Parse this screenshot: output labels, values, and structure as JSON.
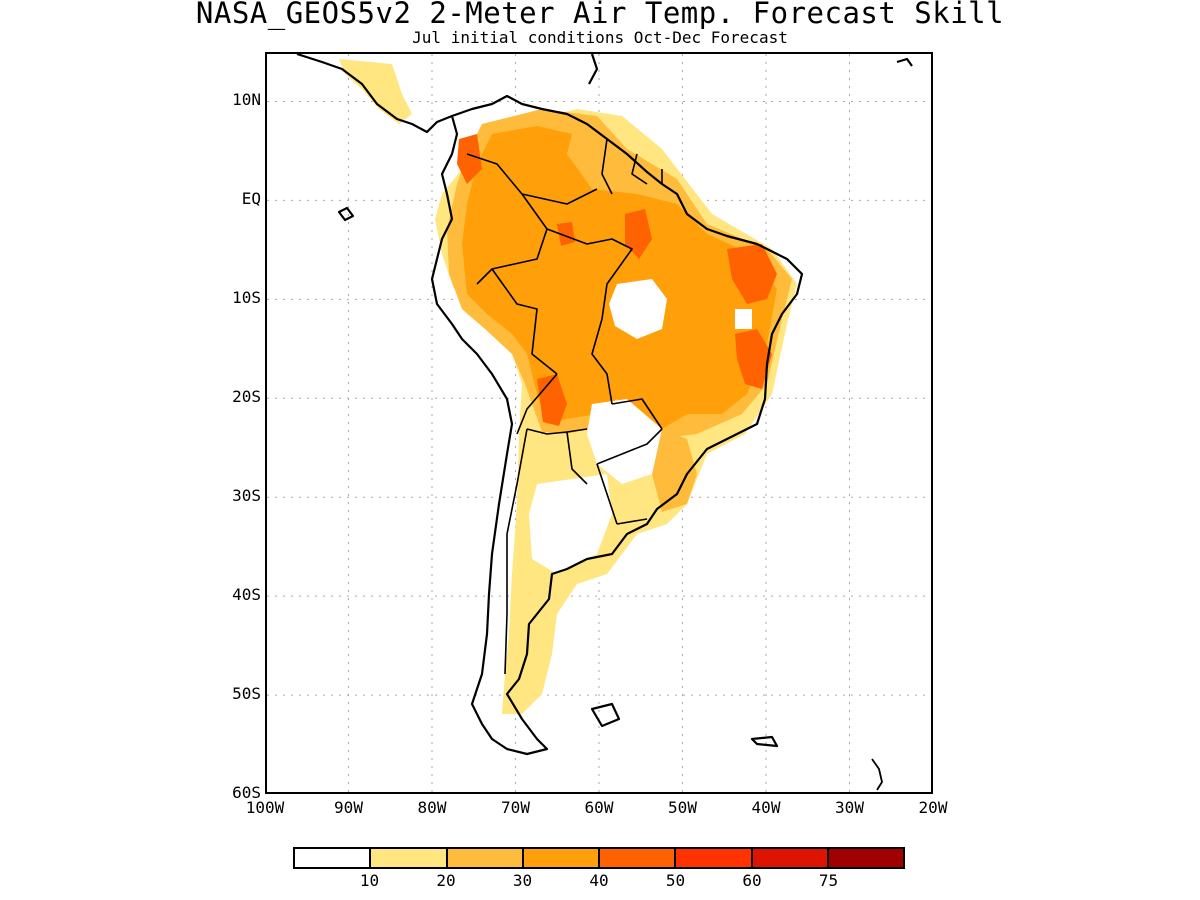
{
  "title": "NASA_GEOS5v2 2-Meter Air Temp. Forecast Skill",
  "subtitle": "Jul initial conditions  Oct-Dec Forecast",
  "map": {
    "lat_labels": [
      "10N",
      "EQ",
      "10S",
      "20S",
      "30S",
      "40S",
      "50S",
      "60S"
    ],
    "lon_labels": [
      "100W",
      "90W",
      "80W",
      "70W",
      "60W",
      "50W",
      "40W",
      "30W",
      "20W"
    ],
    "lat_values": [
      10,
      0,
      -10,
      -20,
      -30,
      -40,
      -50,
      -60
    ],
    "lon_values": [
      -100,
      -90,
      -80,
      -70,
      -60,
      -50,
      -40,
      -30,
      -20
    ],
    "lon_range": [
      -100,
      -20
    ],
    "lat_range": [
      -60,
      15
    ],
    "gridlines": true
  },
  "colorbar": {
    "labels": [
      "10",
      "20",
      "30",
      "40",
      "50",
      "60",
      "75"
    ],
    "colors": [
      "#ffffff",
      "#ffe680",
      "#ffbb3c",
      "#ffa00a",
      "#ff6200",
      "#ff3200",
      "#dc1400",
      "#a00000"
    ]
  }
}
